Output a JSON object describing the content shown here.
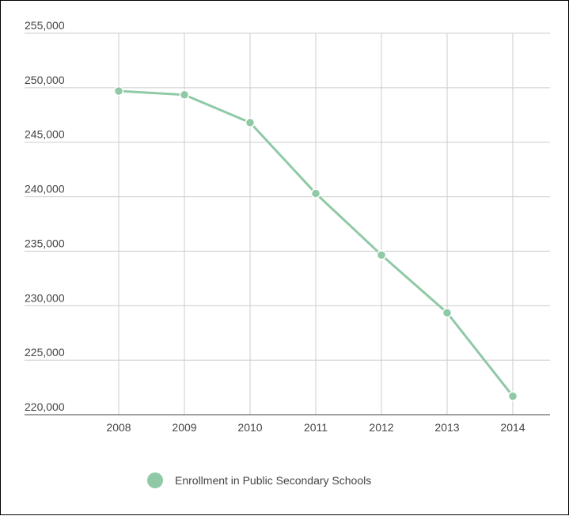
{
  "chart_data": {
    "type": "line",
    "title": "",
    "xlabel": "",
    "ylabel": "",
    "x": [
      "2008",
      "2009",
      "2010",
      "2011",
      "2012",
      "2013",
      "2014"
    ],
    "series": [
      {
        "name": "Enrollment in Public Secondary Schools",
        "values": [
          249700,
          249350,
          246800,
          240300,
          234650,
          229350,
          221700
        ]
      }
    ],
    "y_ticks": [
      "220,000",
      "225,000",
      "230,000",
      "235,000",
      "240,000",
      "245,000",
      "250,000",
      "255,000"
    ],
    "ylim": [
      220000,
      255000
    ],
    "grid": true,
    "legend": "bottom-center",
    "colors": {
      "series": "#8fc9a6",
      "grid": "#cccccc",
      "axis": "#444444",
      "text": "#444444"
    }
  }
}
